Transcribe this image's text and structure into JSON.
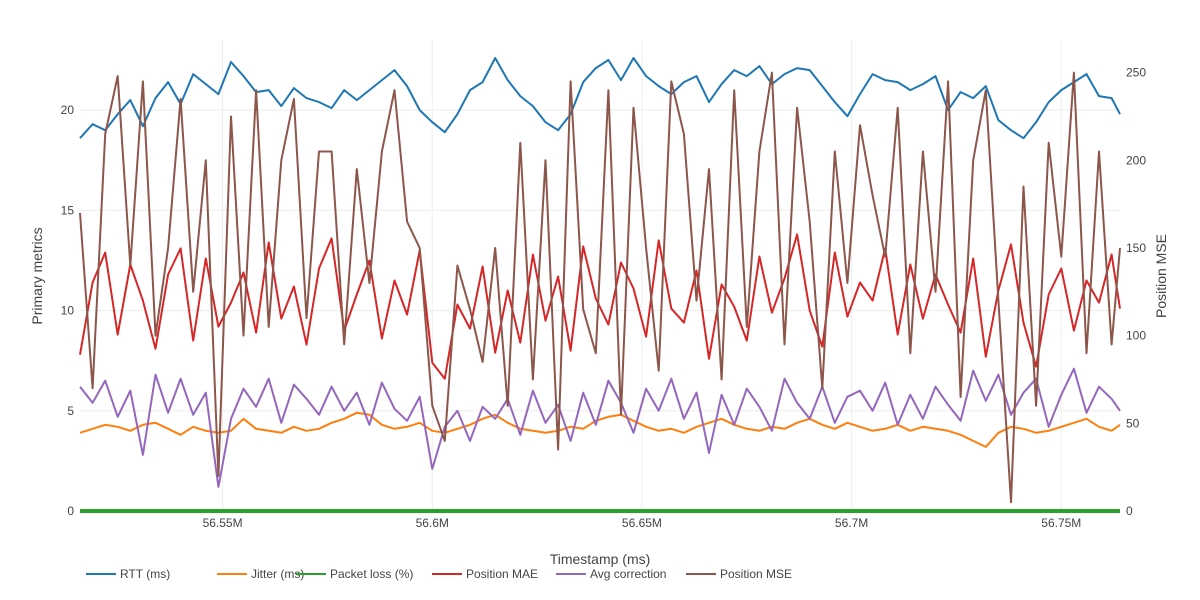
{
  "chart_data": {
    "type": "line",
    "title": "",
    "xlabel": "Timestamp (ms)",
    "ylabel_left": "Primary metrics",
    "ylabel_right": "Position MSE",
    "x_range": [
      56516000,
      56764000
    ],
    "ylim_left": [
      0,
      23.5
    ],
    "ylim_right": [
      0,
      268.6
    ],
    "x_ticks": [
      {
        "value": 56550000,
        "label": "56.55M"
      },
      {
        "value": 56600000,
        "label": "56.6M"
      },
      {
        "value": 56650000,
        "label": "56.65M"
      },
      {
        "value": 56700000,
        "label": "56.7M"
      },
      {
        "value": 56750000,
        "label": "56.75M"
      }
    ],
    "y_ticks_left": [
      {
        "value": 0,
        "label": "0"
      },
      {
        "value": 5,
        "label": "5"
      },
      {
        "value": 10,
        "label": "10"
      },
      {
        "value": 15,
        "label": "15"
      },
      {
        "value": 20,
        "label": "20"
      }
    ],
    "y_ticks_right": [
      {
        "value": 0,
        "label": "0"
      },
      {
        "value": 50,
        "label": "50"
      },
      {
        "value": 100,
        "label": "100"
      },
      {
        "value": 150,
        "label": "150"
      },
      {
        "value": 200,
        "label": "200"
      },
      {
        "value": 250,
        "label": "250"
      }
    ],
    "grid": true,
    "legend_position": "bottom",
    "x": [
      56516000,
      56519000,
      56522000,
      56525000,
      56528000,
      56531000,
      56534000,
      56537000,
      56540000,
      56543000,
      56546000,
      56549000,
      56552000,
      56555000,
      56558000,
      56561000,
      56564000,
      56567000,
      56570000,
      56573000,
      56576000,
      56579000,
      56582000,
      56585000,
      56588000,
      56591000,
      56594000,
      56597000,
      56600000,
      56603000,
      56606000,
      56609000,
      56612000,
      56615000,
      56618000,
      56621000,
      56624000,
      56627000,
      56630000,
      56633000,
      56636000,
      56639000,
      56642000,
      56645000,
      56648000,
      56651000,
      56654000,
      56657000,
      56660000,
      56663000,
      56666000,
      56669000,
      56672000,
      56675000,
      56678000,
      56681000,
      56684000,
      56687000,
      56690000,
      56693000,
      56696000,
      56699000,
      56702000,
      56705000,
      56708000,
      56711000,
      56714000,
      56717000,
      56720000,
      56723000,
      56726000,
      56729000,
      56732000,
      56735000,
      56738000,
      56741000,
      56744000,
      56747000,
      56750000,
      56753000,
      56756000,
      56759000,
      56762000,
      56764000
    ],
    "series": [
      {
        "name": "RTT (ms)",
        "axis": "left",
        "color": "#1f77b4",
        "values": [
          18.6,
          19.3,
          19.0,
          19.8,
          20.5,
          19.2,
          20.6,
          21.4,
          20.3,
          21.8,
          21.3,
          20.8,
          22.4,
          21.7,
          20.9,
          21.0,
          20.2,
          21.1,
          20.6,
          20.4,
          20.1,
          21.0,
          20.5,
          21.0,
          21.5,
          22.0,
          21.2,
          20.0,
          19.4,
          18.9,
          19.8,
          21.0,
          21.4,
          22.6,
          21.5,
          20.7,
          20.2,
          19.4,
          19.0,
          19.8,
          21.4,
          22.1,
          22.5,
          21.5,
          22.6,
          21.7,
          21.2,
          20.8,
          21.4,
          21.7,
          20.4,
          21.3,
          22.0,
          21.7,
          22.2,
          21.3,
          21.8,
          22.1,
          22.0,
          21.2,
          20.4,
          19.7,
          20.8,
          21.8,
          21.5,
          21.4,
          21.0,
          21.3,
          21.7,
          20.0,
          20.9,
          20.6,
          21.2,
          19.5,
          19.0,
          18.6,
          19.4,
          20.4,
          21.0,
          21.4,
          21.8,
          20.7,
          20.6,
          19.8
        ]
      },
      {
        "name": "Jitter (ms)",
        "axis": "left",
        "color": "#ff7f0e",
        "values": [
          3.9,
          4.1,
          4.3,
          4.2,
          4.0,
          4.3,
          4.4,
          4.1,
          3.8,
          4.2,
          4.0,
          3.9,
          4.0,
          4.6,
          4.1,
          4.0,
          3.9,
          4.2,
          4.0,
          4.1,
          4.4,
          4.6,
          4.9,
          4.8,
          4.3,
          4.1,
          4.2,
          4.4,
          4.0,
          3.9,
          4.1,
          4.3,
          4.6,
          4.8,
          4.4,
          4.1,
          4.0,
          3.9,
          4.0,
          4.2,
          4.1,
          4.5,
          4.7,
          4.8,
          4.5,
          4.2,
          4.0,
          4.1,
          3.9,
          4.2,
          4.4,
          4.6,
          4.3,
          4.1,
          4.0,
          4.2,
          4.1,
          4.4,
          4.6,
          4.3,
          4.1,
          4.4,
          4.2,
          4.0,
          4.1,
          4.3,
          4.0,
          4.2,
          4.1,
          4.0,
          3.8,
          3.5,
          3.2,
          3.9,
          4.2,
          4.1,
          3.9,
          4.0,
          4.2,
          4.4,
          4.6,
          4.2,
          4.0,
          4.3
        ]
      },
      {
        "name": "Packet loss (%)",
        "axis": "left",
        "color": "#2ca02c",
        "values": [
          0,
          0,
          0,
          0,
          0,
          0,
          0,
          0,
          0,
          0,
          0,
          0,
          0,
          0,
          0,
          0,
          0,
          0,
          0,
          0,
          0,
          0,
          0,
          0,
          0,
          0,
          0,
          0,
          0,
          0,
          0,
          0,
          0,
          0,
          0,
          0,
          0,
          0,
          0,
          0,
          0,
          0,
          0,
          0,
          0,
          0,
          0,
          0,
          0,
          0,
          0,
          0,
          0,
          0,
          0,
          0,
          0,
          0,
          0,
          0,
          0,
          0,
          0,
          0,
          0,
          0,
          0,
          0,
          0,
          0,
          0,
          0,
          0,
          0,
          0,
          0,
          0,
          0,
          0,
          0,
          0,
          0,
          0,
          0
        ]
      },
      {
        "name": "Position MAE",
        "axis": "left",
        "color": "#d62728",
        "values": [
          7.8,
          11.4,
          12.9,
          8.8,
          12.3,
          10.5,
          8.1,
          11.8,
          13.1,
          8.5,
          12.6,
          9.2,
          10.4,
          11.9,
          8.9,
          13.4,
          9.6,
          11.2,
          8.3,
          12.1,
          13.6,
          9.0,
          10.8,
          12.5,
          8.6,
          11.5,
          9.8,
          13.0,
          7.4,
          6.6,
          10.3,
          9.1,
          12.2,
          7.9,
          11.0,
          8.4,
          12.8,
          9.5,
          11.7,
          8.0,
          13.2,
          10.6,
          9.3,
          12.4,
          11.1,
          8.7,
          13.5,
          10.1,
          9.4,
          12.0,
          7.6,
          11.3,
          10.2,
          8.5,
          12.7,
          9.9,
          11.6,
          13.8,
          10.0,
          8.2,
          12.9,
          9.7,
          11.4,
          10.5,
          13.1,
          8.8,
          12.3,
          9.6,
          11.8,
          10.3,
          8.9,
          12.6,
          7.7,
          11.0,
          13.3,
          9.4,
          7.2,
          10.8,
          12.1,
          9.0,
          11.5,
          10.4,
          12.8,
          10.1
        ]
      },
      {
        "name": "Avg correction",
        "axis": "left",
        "color": "#9467bd",
        "values": [
          6.2,
          5.4,
          6.5,
          4.7,
          6.0,
          2.8,
          6.8,
          4.9,
          6.6,
          4.8,
          5.9,
          1.2,
          4.6,
          6.1,
          5.2,
          6.6,
          4.4,
          6.3,
          5.6,
          4.8,
          6.2,
          5.0,
          5.9,
          4.3,
          6.4,
          5.1,
          4.5,
          5.7,
          2.1,
          4.2,
          5.0,
          3.5,
          5.2,
          4.6,
          5.6,
          3.8,
          6.0,
          4.4,
          5.3,
          3.5,
          5.9,
          4.3,
          6.5,
          5.4,
          3.9,
          6.1,
          5.0,
          6.6,
          4.6,
          5.9,
          2.9,
          5.8,
          4.3,
          6.1,
          5.2,
          4.0,
          6.6,
          5.4,
          4.6,
          6.2,
          4.4,
          5.7,
          6.0,
          5.0,
          6.4,
          4.3,
          5.8,
          4.6,
          6.2,
          5.3,
          4.5,
          7.0,
          5.5,
          6.8,
          4.8,
          5.9,
          6.6,
          4.2,
          5.8,
          7.1,
          4.9,
          6.2,
          5.6,
          5.0
        ]
      },
      {
        "name": "Position MSE",
        "axis": "right",
        "color": "#8c564b",
        "values": [
          170,
          70,
          215,
          248,
          140,
          245,
          100,
          150,
          235,
          125,
          200,
          20,
          225,
          100,
          240,
          105,
          200,
          235,
          110,
          205,
          205,
          95,
          195,
          130,
          205,
          240,
          165,
          150,
          60,
          40,
          140,
          115,
          85,
          150,
          60,
          210,
          75,
          200,
          35,
          245,
          115,
          90,
          240,
          55,
          230,
          150,
          80,
          245,
          215,
          120,
          195,
          75,
          240,
          105,
          205,
          250,
          95,
          230,
          165,
          70,
          205,
          130,
          220,
          180,
          145,
          230,
          90,
          205,
          125,
          245,
          65,
          200,
          240,
          120,
          5,
          185,
          60,
          210,
          145,
          250,
          90,
          205,
          95,
          150
        ]
      }
    ]
  }
}
